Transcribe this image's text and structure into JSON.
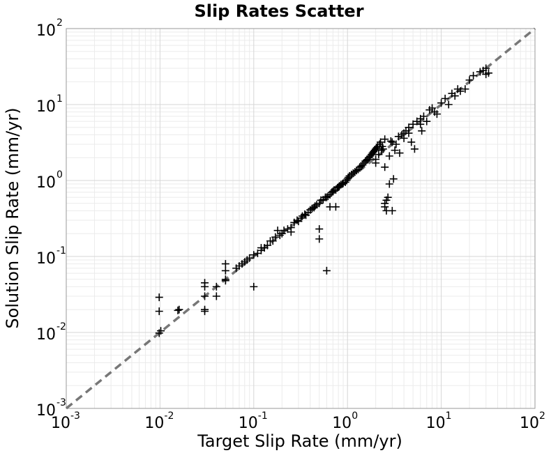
{
  "chart_data": {
    "type": "scatter",
    "title": "Slip Rates Scatter",
    "xlabel": "Target Slip Rate (mm/yr)",
    "ylabel": "Solution Slip Rate (mm/yr)",
    "xscale": "log",
    "yscale": "log",
    "xlim": [
      0.001,
      100
    ],
    "ylim": [
      0.001,
      100
    ],
    "grid": true,
    "marker": "+",
    "marker_color": "#000000",
    "reference_line": {
      "style": "dashed",
      "color": "#777777",
      "x": [
        0.001,
        100
      ],
      "y": [
        0.001,
        100
      ]
    },
    "x_ticks": [
      {
        "base": "10",
        "exp": "-3"
      },
      {
        "base": "10",
        "exp": "-2"
      },
      {
        "base": "10",
        "exp": "-1"
      },
      {
        "base": "10",
        "exp": "0"
      },
      {
        "base": "10",
        "exp": "1"
      },
      {
        "base": "10",
        "exp": "2"
      }
    ],
    "y_ticks": [
      {
        "base": "10",
        "exp": "-3"
      },
      {
        "base": "10",
        "exp": "-2"
      },
      {
        "base": "10",
        "exp": "-1"
      },
      {
        "base": "10",
        "exp": "0"
      },
      {
        "base": "10",
        "exp": "1"
      },
      {
        "base": "10",
        "exp": "2"
      }
    ],
    "points": [
      [
        0.0098,
        0.029
      ],
      [
        0.0098,
        0.019
      ],
      [
        0.0098,
        0.0098
      ],
      [
        0.0102,
        0.0105
      ],
      [
        0.0155,
        0.0195
      ],
      [
        0.016,
        0.02
      ],
      [
        0.03,
        0.045
      ],
      [
        0.03,
        0.04
      ],
      [
        0.03,
        0.03
      ],
      [
        0.03,
        0.02
      ],
      [
        0.03,
        0.019
      ],
      [
        0.04,
        0.04
      ],
      [
        0.04,
        0.03
      ],
      [
        0.05,
        0.08
      ],
      [
        0.05,
        0.065
      ],
      [
        0.05,
        0.05
      ],
      [
        0.05,
        0.048
      ],
      [
        0.065,
        0.07
      ],
      [
        0.07,
        0.075
      ],
      [
        0.075,
        0.08
      ],
      [
        0.08,
        0.085
      ],
      [
        0.085,
        0.09
      ],
      [
        0.09,
        0.095
      ],
      [
        0.1,
        0.04
      ],
      [
        0.1,
        0.105
      ],
      [
        0.11,
        0.11
      ],
      [
        0.12,
        0.12
      ],
      [
        0.12,
        0.13
      ],
      [
        0.13,
        0.13
      ],
      [
        0.14,
        0.14
      ],
      [
        0.15,
        0.16
      ],
      [
        0.16,
        0.16
      ],
      [
        0.17,
        0.18
      ],
      [
        0.18,
        0.22
      ],
      [
        0.19,
        0.19
      ],
      [
        0.2,
        0.2
      ],
      [
        0.21,
        0.22
      ],
      [
        0.23,
        0.23
      ],
      [
        0.25,
        0.24
      ],
      [
        0.25,
        0.21
      ],
      [
        0.27,
        0.28
      ],
      [
        0.29,
        0.3
      ],
      [
        0.3,
        0.29
      ],
      [
        0.32,
        0.32
      ],
      [
        0.33,
        0.34
      ],
      [
        0.35,
        0.36
      ],
      [
        0.36,
        0.35
      ],
      [
        0.38,
        0.38
      ],
      [
        0.4,
        0.41
      ],
      [
        0.42,
        0.43
      ],
      [
        0.44,
        0.44
      ],
      [
        0.45,
        0.46
      ],
      [
        0.47,
        0.48
      ],
      [
        0.5,
        0.5
      ],
      [
        0.5,
        0.23
      ],
      [
        0.5,
        0.17
      ],
      [
        0.52,
        0.55
      ],
      [
        0.55,
        0.56
      ],
      [
        0.58,
        0.6
      ],
      [
        0.6,
        0.6
      ],
      [
        0.6,
        0.065
      ],
      [
        0.62,
        0.62
      ],
      [
        0.65,
        0.65
      ],
      [
        0.65,
        0.45
      ],
      [
        0.68,
        0.7
      ],
      [
        0.7,
        0.72
      ],
      [
        0.72,
        0.75
      ],
      [
        0.75,
        0.75
      ],
      [
        0.75,
        0.45
      ],
      [
        0.78,
        0.8
      ],
      [
        0.8,
        0.82
      ],
      [
        0.82,
        0.85
      ],
      [
        0.85,
        0.88
      ],
      [
        0.88,
        0.9
      ],
      [
        0.9,
        0.92
      ],
      [
        0.95,
        0.95
      ],
      [
        0.98,
        1.0
      ],
      [
        1.0,
        1.05
      ],
      [
        1.02,
        1.1
      ],
      [
        1.05,
        1.15
      ],
      [
        1.1,
        1.2
      ],
      [
        1.15,
        1.25
      ],
      [
        1.2,
        1.3
      ],
      [
        1.25,
        1.35
      ],
      [
        1.3,
        1.4
      ],
      [
        1.35,
        1.5
      ],
      [
        1.4,
        1.55
      ],
      [
        1.45,
        1.6
      ],
      [
        1.5,
        1.7
      ],
      [
        1.55,
        1.8
      ],
      [
        1.6,
        1.85
      ],
      [
        1.65,
        1.9
      ],
      [
        1.7,
        2.0
      ],
      [
        1.75,
        2.1
      ],
      [
        1.8,
        2.2
      ],
      [
        1.85,
        2.3
      ],
      [
        1.9,
        2.4
      ],
      [
        1.95,
        2.5
      ],
      [
        2.0,
        2.6
      ],
      [
        2.0,
        1.9
      ],
      [
        2.0,
        1.7
      ],
      [
        2.05,
        2.7
      ],
      [
        2.1,
        2.8
      ],
      [
        2.15,
        2.2
      ],
      [
        2.2,
        3.0
      ],
      [
        2.25,
        3.2
      ],
      [
        2.3,
        2.5
      ],
      [
        2.35,
        2.8
      ],
      [
        2.4,
        2.6
      ],
      [
        2.5,
        3.5
      ],
      [
        2.5,
        1.5
      ],
      [
        2.5,
        0.5
      ],
      [
        2.5,
        0.45
      ],
      [
        2.6,
        0.55
      ],
      [
        2.6,
        0.4
      ],
      [
        2.7,
        0.6
      ],
      [
        2.8,
        0.9
      ],
      [
        2.8,
        2.1
      ],
      [
        2.9,
        3.3
      ],
      [
        3.0,
        3.2
      ],
      [
        3.0,
        0.4
      ],
      [
        3.1,
        1.05
      ],
      [
        3.2,
        2.5
      ],
      [
        3.3,
        3.0
      ],
      [
        3.5,
        3.8
      ],
      [
        3.6,
        2.3
      ],
      [
        3.8,
        4.0
      ],
      [
        4.0,
        3.6
      ],
      [
        4.0,
        4.2
      ],
      [
        4.2,
        4.5
      ],
      [
        4.5,
        4.2
      ],
      [
        4.5,
        5.0
      ],
      [
        4.8,
        3.2
      ],
      [
        5.0,
        5.5
      ],
      [
        5.2,
        2.6
      ],
      [
        5.5,
        6.0
      ],
      [
        6.0,
        5.5
      ],
      [
        6.0,
        6.5
      ],
      [
        6.2,
        4.5
      ],
      [
        6.5,
        7.0
      ],
      [
        7.0,
        6.0
      ],
      [
        7.5,
        8.5
      ],
      [
        8.0,
        9.0
      ],
      [
        8.5,
        8.0
      ],
      [
        9.0,
        7.5
      ],
      [
        10.0,
        10.5
      ],
      [
        11.0,
        12.0
      ],
      [
        12.0,
        10.0
      ],
      [
        13.0,
        14.0
      ],
      [
        14.0,
        13.0
      ],
      [
        15.0,
        16.0
      ],
      [
        16.0,
        15.0
      ],
      [
        18.0,
        16.0
      ],
      [
        20.0,
        21.0
      ],
      [
        22.0,
        24.0
      ],
      [
        26.0,
        27.0
      ],
      [
        28.0,
        28.0
      ],
      [
        30.0,
        25.0
      ],
      [
        32.0,
        26.0
      ],
      [
        30.0,
        30.0
      ]
    ]
  }
}
